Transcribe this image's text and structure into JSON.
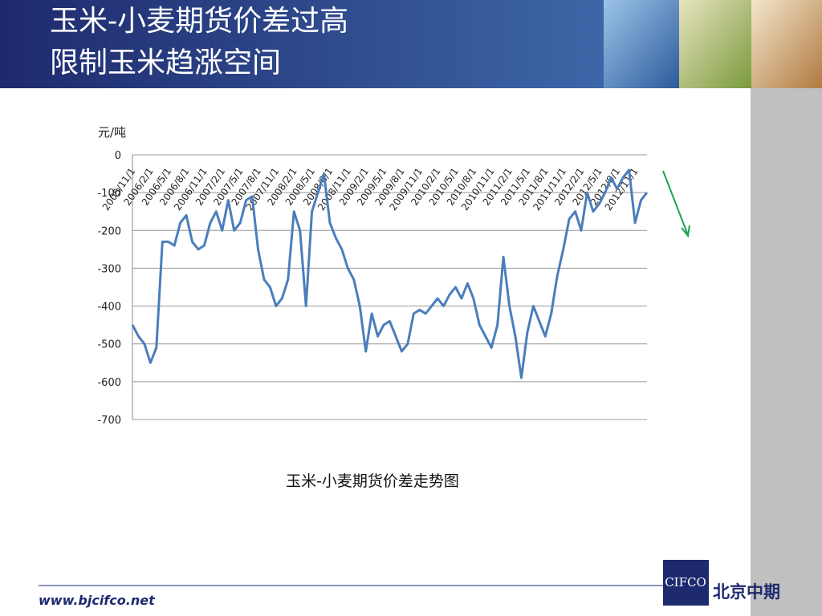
{
  "header": {
    "title_line1": "玉米-小麦期货价差过高",
    "title_line2": "限制玉米趋涨空间"
  },
  "caption": "玉米-小麦期货价差走势图",
  "footer": {
    "website": "www.bjcifco.net",
    "logo": "CIFCO",
    "company": "北京中期"
  },
  "chart_data": {
    "type": "line",
    "y_axis_label": "元/吨",
    "categories": [
      "2005/11/1",
      null,
      null,
      "2006/2/1",
      null,
      null,
      "2006/5/1",
      null,
      null,
      "2006/8/1",
      null,
      null,
      "2006/11/1",
      null,
      null,
      "2007/2/1",
      null,
      null,
      "2007/5/1",
      null,
      null,
      "2007/8/1",
      null,
      null,
      "2007/11/1",
      null,
      null,
      "2008/2/1",
      null,
      null,
      "2008/5/1",
      null,
      null,
      "2008/8/1",
      null,
      null,
      "2008/11/1",
      null,
      null,
      "2009/2/1",
      null,
      null,
      "2009/5/1",
      null,
      null,
      "2009/8/1",
      null,
      null,
      "2009/11/1",
      null,
      null,
      "2010/2/1",
      null,
      null,
      "2010/5/1",
      null,
      null,
      "2010/8/1",
      null,
      null,
      "2010/11/1",
      null,
      null,
      "2011/2/1",
      null,
      null,
      "2011/5/1",
      null,
      null,
      "2011/8/1",
      null,
      null,
      "2011/11/1",
      null,
      null,
      "2012/2/1",
      null,
      null,
      "2012/5/1",
      null,
      null,
      "2012/8/1",
      null,
      null,
      "2012/11/1",
      null,
      null
    ],
    "series": [
      {
        "color": "#4a7ebb",
        "values": [
          -450,
          -480,
          -500,
          -550,
          -510,
          -230,
          -230,
          -240,
          -180,
          -160,
          -230,
          -250,
          -240,
          -180,
          -150,
          -200,
          -120,
          -200,
          -180,
          -120,
          -110,
          -250,
          -330,
          -350,
          -400,
          -380,
          -330,
          -150,
          -200,
          -400,
          -150,
          -100,
          -50,
          -180,
          -220,
          -250,
          -300,
          -330,
          -400,
          -520,
          -420,
          -480,
          -450,
          -440,
          -480,
          -520,
          -500,
          -420,
          -410,
          -420,
          -400,
          -380,
          -400,
          -370,
          -350,
          -380,
          -340,
          -380,
          -450,
          -480,
          -510,
          -450,
          -270,
          -400,
          -480,
          -590,
          -470,
          -400,
          -440,
          -480,
          -420,
          -320,
          -250,
          -170,
          -150,
          -200,
          -100,
          -150,
          -130,
          -100,
          -60,
          -90,
          -60,
          -40,
          -180,
          -120,
          -100
        ]
      }
    ],
    "ylim": [
      -700,
      0
    ],
    "yticks": [
      0,
      -100,
      -200,
      -300,
      -400,
      -500,
      -600,
      -700
    ],
    "grid": true
  }
}
